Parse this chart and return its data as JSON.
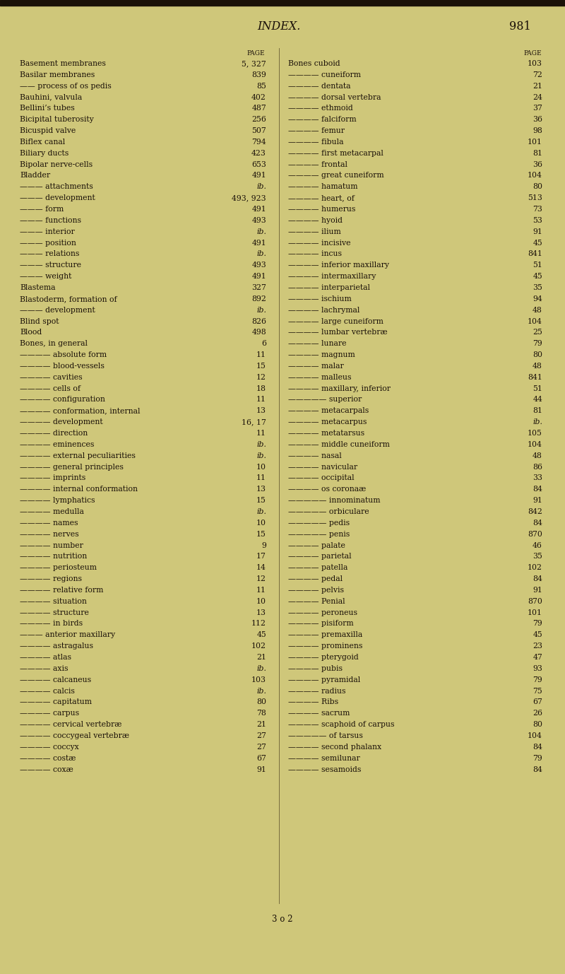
{
  "background_color": "#cfc77a",
  "title": "INDEX.",
  "page_num": "981",
  "title_fontsize": 11.5,
  "body_fontsize": 7.8,
  "header_fontsize": 6.5,
  "left_entries": [
    [
      "Basement membranes",
      "5, 327",
      0
    ],
    [
      "Basilar membranes",
      "839",
      0
    ],
    [
      "—— process of os pedis",
      "85",
      1
    ],
    [
      "Bauhini, valvula",
      "402",
      0
    ],
    [
      "Bellini’s tubes",
      "487",
      0
    ],
    [
      "Bicipital tuberosity",
      "256",
      0
    ],
    [
      "Bicuspid valve",
      "507",
      0
    ],
    [
      "Biflex canal",
      "794",
      0
    ],
    [
      "Biliary ducts",
      "423",
      0
    ],
    [
      "Bipolar nerve-cells",
      "653",
      0
    ],
    [
      "Bladder",
      "491",
      0
    ],
    [
      "——— attachments",
      "ib.",
      1
    ],
    [
      "——— development",
      "493, 923",
      1
    ],
    [
      "——— form",
      "491",
      1
    ],
    [
      "——— functions",
      "493",
      1
    ],
    [
      "——— interior",
      "ib.",
      1
    ],
    [
      "——— position",
      "491",
      1
    ],
    [
      "——— relations",
      "ib.",
      1
    ],
    [
      "——— structure",
      "493",
      1
    ],
    [
      "——— weight",
      "491",
      1
    ],
    [
      "Blastema",
      "327",
      0
    ],
    [
      "Blastoderm, formation of",
      "892",
      0
    ],
    [
      "——— development",
      "ib.",
      1
    ],
    [
      "Blind spot",
      "826",
      0
    ],
    [
      "Blood",
      "498",
      0
    ],
    [
      "Bones, in general",
      "6",
      0
    ],
    [
      "———— absolute form",
      "11",
      2
    ],
    [
      "———— blood-vessels",
      "15",
      2
    ],
    [
      "———— cavities",
      "12",
      2
    ],
    [
      "———— cells of",
      "18",
      2
    ],
    [
      "———— configuration",
      "11",
      2
    ],
    [
      "———— conformation, internal",
      "13",
      2
    ],
    [
      "———— development",
      "16, 17",
      2
    ],
    [
      "———— direction",
      "11",
      2
    ],
    [
      "———— eminences",
      "ib.",
      2
    ],
    [
      "———— external peculiarities",
      "ib.",
      2
    ],
    [
      "———— general principles",
      "10",
      2
    ],
    [
      "———— imprints",
      "11",
      2
    ],
    [
      "———— internal conformation",
      "13",
      2
    ],
    [
      "———— lymphatics",
      "15",
      2
    ],
    [
      "———— medulla",
      "ib.",
      2
    ],
    [
      "———— names",
      "10",
      2
    ],
    [
      "———— nerves",
      "15",
      2
    ],
    [
      "———— number",
      "9",
      2
    ],
    [
      "———— nutrition",
      "17",
      2
    ],
    [
      "———— periosteum",
      "14",
      2
    ],
    [
      "———— regions",
      "12",
      2
    ],
    [
      "———— relative form",
      "11",
      2
    ],
    [
      "———— situation",
      "10",
      2
    ],
    [
      "———— structure",
      "13",
      2
    ],
    [
      "———— in birds",
      "112",
      2
    ],
    [
      "——— anterior maxillary",
      "45",
      1
    ],
    [
      "———— astragalus",
      "102",
      1
    ],
    [
      "———— atlas",
      "21",
      1
    ],
    [
      "———— axis",
      "ib.",
      1
    ],
    [
      "———— calcaneus",
      "103",
      1
    ],
    [
      "———— calcis",
      "ib.",
      1
    ],
    [
      "———— capitatum",
      "80",
      1
    ],
    [
      "———— carpus",
      "78",
      1
    ],
    [
      "———— cervical vertebræ",
      "21",
      1
    ],
    [
      "———— coccygeal vertebræ",
      "27",
      1
    ],
    [
      "———— coccyx",
      "27",
      1
    ],
    [
      "———— costæ",
      "67",
      1
    ],
    [
      "———— coxæ",
      "91",
      1
    ]
  ],
  "right_entries": [
    [
      "Bones cuboid",
      "103",
      0
    ],
    [
      "———— cuneiform",
      "72",
      1
    ],
    [
      "———— dentata",
      "21",
      1
    ],
    [
      "———— dorsal vertebra",
      "24",
      1
    ],
    [
      "———— ethmoid",
      "37",
      1
    ],
    [
      "———— falciform",
      "36",
      1
    ],
    [
      "———— femur",
      "98",
      1
    ],
    [
      "———— fibula",
      "101",
      1
    ],
    [
      "———— first metacarpal",
      "81",
      1
    ],
    [
      "———— frontal",
      "36",
      1
    ],
    [
      "———— great cuneiform",
      "104",
      1
    ],
    [
      "———— hamatum",
      "80",
      1
    ],
    [
      "———— heart, of",
      "513",
      1
    ],
    [
      "———— humerus",
      "73",
      1
    ],
    [
      "———— hyoid",
      "53",
      1
    ],
    [
      "———— ilium",
      "91",
      1
    ],
    [
      "———— incisive",
      "45",
      1
    ],
    [
      "———— incus",
      "841",
      1
    ],
    [
      "———— inferior maxillary",
      "51",
      1
    ],
    [
      "———— intermaxillary",
      "45",
      1
    ],
    [
      "———— interparietal",
      "35",
      1
    ],
    [
      "———— ischium",
      "94",
      1
    ],
    [
      "———— lachrymal",
      "48",
      1
    ],
    [
      "———— large cuneiform",
      "104",
      1
    ],
    [
      "———— lumbar vertebræ",
      "25",
      1
    ],
    [
      "———— lunare",
      "79",
      1
    ],
    [
      "———— magnum",
      "80",
      1
    ],
    [
      "———— malar",
      "48",
      1
    ],
    [
      "———— malleus",
      "841",
      1
    ],
    [
      "———— maxillary, inferior",
      "51",
      1
    ],
    [
      "————— superior",
      "44",
      2
    ],
    [
      "———— metacarpals",
      "81",
      1
    ],
    [
      "———— metacarpus",
      "ib.",
      1
    ],
    [
      "———— metatarsus",
      "105",
      1
    ],
    [
      "———— middle cuneiform",
      "104",
      1
    ],
    [
      "———— nasal",
      "48",
      1
    ],
    [
      "———— navicular",
      "86",
      1
    ],
    [
      "———— occipital",
      "33",
      1
    ],
    [
      "———— os coronaæ",
      "84",
      1
    ],
    [
      "————— innominatum",
      "91",
      2
    ],
    [
      "————— orbiculare",
      "842",
      2
    ],
    [
      "————— pedis",
      "84",
      2
    ],
    [
      "————— penis",
      "870",
      2
    ],
    [
      "———— palate",
      "46",
      1
    ],
    [
      "———— parietal",
      "35",
      1
    ],
    [
      "———— patella",
      "102",
      1
    ],
    [
      "———— pedal",
      "84",
      1
    ],
    [
      "———— pelvis",
      "91",
      1
    ],
    [
      "———— Penial",
      "870",
      1
    ],
    [
      "———— peroneus",
      "101",
      1
    ],
    [
      "———— pisiform",
      "79",
      1
    ],
    [
      "———— premaxilla",
      "45",
      1
    ],
    [
      "———— prominens",
      "23",
      1
    ],
    [
      "———— pterygoid",
      "47",
      1
    ],
    [
      "———— pubis",
      "93",
      1
    ],
    [
      "———— pyramidal",
      "79",
      1
    ],
    [
      "———— radius",
      "75",
      1
    ],
    [
      "———— Ribs",
      "67",
      1
    ],
    [
      "———— sacrum",
      "26",
      1
    ],
    [
      "———— scaphoid of carpus",
      "80",
      1
    ],
    [
      "————— of tarsus",
      "104",
      2
    ],
    [
      "———— second phalanx",
      "84",
      1
    ],
    [
      "———— semilunar",
      "79",
      1
    ],
    [
      "———— sesamoids",
      "84",
      1
    ]
  ]
}
